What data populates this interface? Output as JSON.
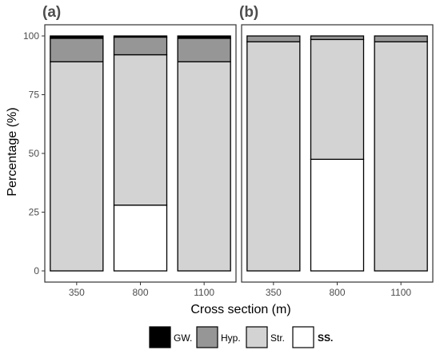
{
  "chart_data": {
    "type": "bar",
    "stacked": true,
    "xlabel": "Cross section (m)",
    "ylabel": "Percentage (%)",
    "ylim": [
      0,
      100
    ],
    "yticks": [
      0,
      25,
      50,
      75,
      100
    ],
    "categories": [
      "350",
      "800",
      "1100"
    ],
    "legend": {
      "position": "bottom",
      "entries": [
        {
          "key": "gw",
          "label": "GW.",
          "color": "#000000",
          "bold": false
        },
        {
          "key": "hyp",
          "label": "Hyp.",
          "color": "#969696",
          "bold": false
        },
        {
          "key": "str",
          "label": "Str.",
          "color": "#d3d3d3",
          "bold": false
        },
        {
          "key": "ss",
          "label": "SS.",
          "color": "#ffffff",
          "bold": true
        }
      ]
    },
    "panels": [
      {
        "label": "(a)",
        "series": [
          {
            "key": "ss",
            "values": [
              0,
              28,
              0
            ]
          },
          {
            "key": "str",
            "values": [
              89,
              64,
              89
            ]
          },
          {
            "key": "hyp",
            "values": [
              10,
              7.5,
              10
            ]
          },
          {
            "key": "gw",
            "values": [
              1,
              0.5,
              1
            ]
          }
        ]
      },
      {
        "label": "(b)",
        "series": [
          {
            "key": "ss",
            "values": [
              0,
              47.5,
              0
            ]
          },
          {
            "key": "str",
            "values": [
              97.5,
              51,
              97.5
            ]
          },
          {
            "key": "hyp",
            "values": [
              2.5,
              1.5,
              2.5
            ]
          },
          {
            "key": "gw",
            "values": [
              0,
              0,
              0
            ]
          }
        ]
      }
    ]
  }
}
